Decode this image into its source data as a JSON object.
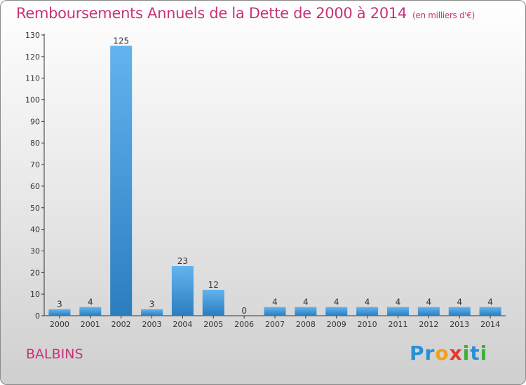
{
  "header": {
    "title": "Remboursements Annuels de la Dette de 2000 à 2014",
    "unit": "(en milliers d'€)"
  },
  "footer": {
    "place": "BALBINS",
    "logo_letters": [
      {
        "ch": "P",
        "color": "#2a8fd6"
      },
      {
        "ch": "r",
        "color": "#2a8fd6"
      },
      {
        "ch": "o",
        "color": "#f2a019"
      },
      {
        "ch": "x",
        "color": "#e8392e"
      },
      {
        "ch": "i",
        "color": "#3fae3a"
      },
      {
        "ch": "t",
        "color": "#2a8fd6"
      },
      {
        "ch": "i",
        "color": "#3fae3a"
      }
    ]
  },
  "colors": {
    "bar_top": "#63b3ee",
    "bar_bottom": "#2a7ec0",
    "title": "#c8327a"
  },
  "chart_data": {
    "type": "bar",
    "title": "Remboursements Annuels de la Dette de 2000 à 2014",
    "xlabel": "",
    "ylabel": "",
    "categories": [
      "2000",
      "2001",
      "2002",
      "2003",
      "2004",
      "2005",
      "2006",
      "2007",
      "2008",
      "2009",
      "2010",
      "2011",
      "2012",
      "2013",
      "2014"
    ],
    "values": [
      3,
      4,
      125,
      3,
      23,
      12,
      0,
      4,
      4,
      4,
      4,
      4,
      4,
      4,
      4
    ],
    "ylim": [
      0,
      130
    ],
    "yticks": [
      0,
      10,
      20,
      30,
      40,
      50,
      60,
      70,
      80,
      90,
      100,
      110,
      120,
      130
    ],
    "grid": false,
    "legend": "none"
  }
}
